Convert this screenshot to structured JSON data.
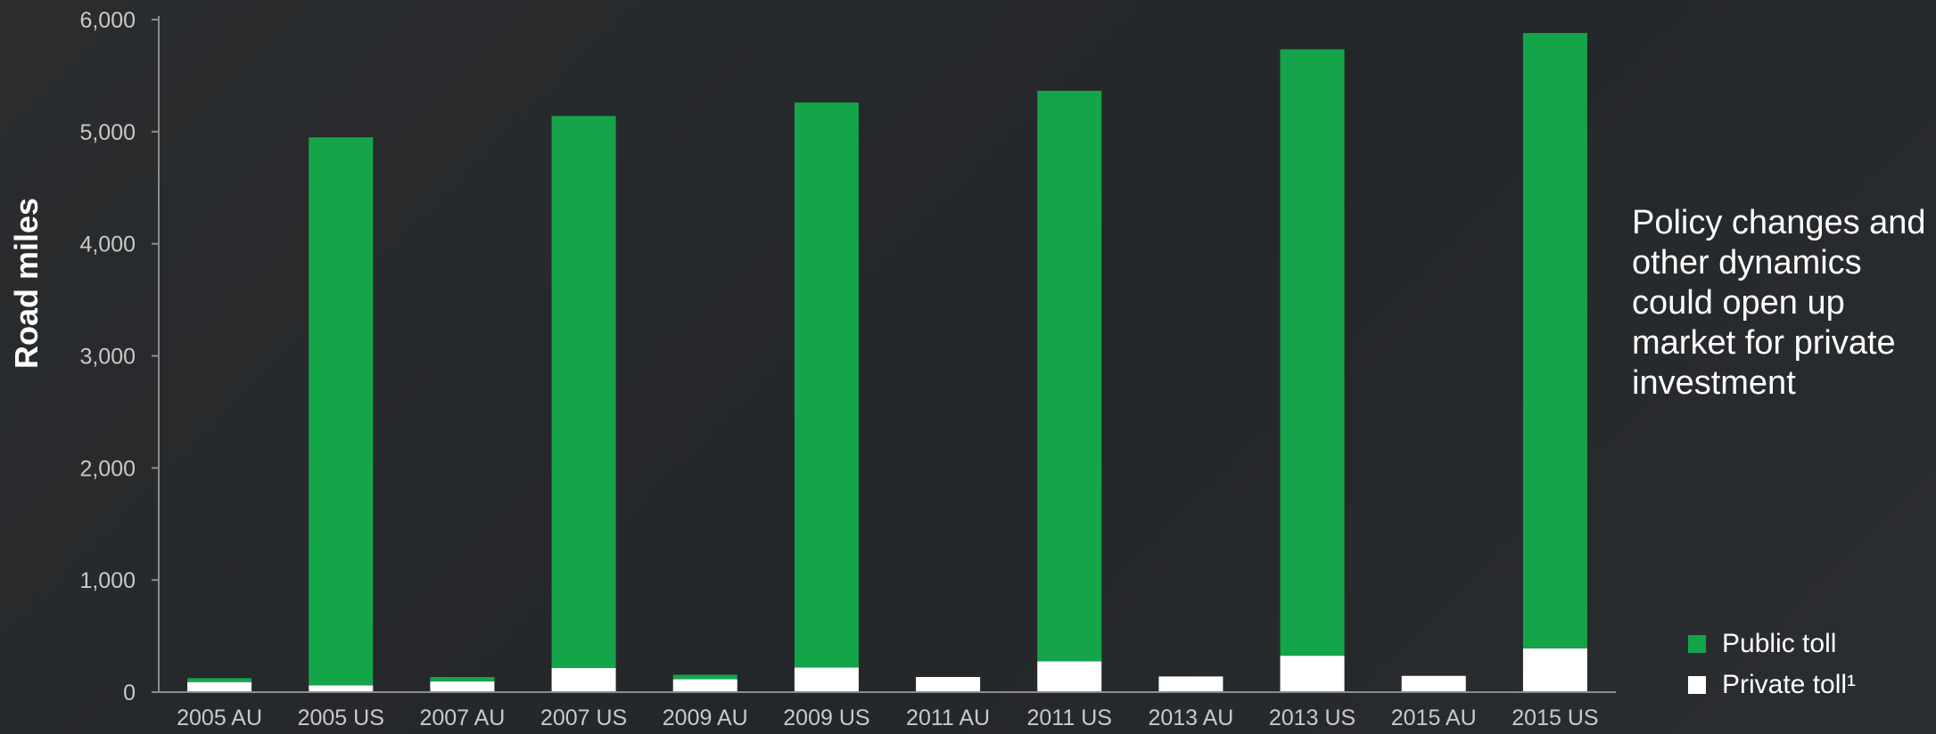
{
  "annotation": "Policy changes and other dynamics could open up market for private investment",
  "chart_data": {
    "type": "bar",
    "stacked": true,
    "ylabel": "Road miles",
    "ylim": [
      0,
      6000
    ],
    "yticks": [
      0,
      1000,
      2000,
      3000,
      4000,
      5000,
      6000
    ],
    "ytick_labels": [
      "0",
      "1,000",
      "2,000",
      "3,000",
      "4,000",
      "5,000",
      "6,000"
    ],
    "categories": [
      "2005 AU",
      "2005 US",
      "2007 AU",
      "2007 US",
      "2009 AU",
      "2009 US",
      "2011 AU",
      "2011 US",
      "2013 AU",
      "2013 US",
      "2015 AU",
      "2015 US"
    ],
    "series": [
      {
        "name": "Private toll¹",
        "color": "#ffffff",
        "values": [
          90,
          60,
          95,
          215,
          115,
          220,
          135,
          275,
          140,
          325,
          145,
          390
        ]
      },
      {
        "name": "Public toll",
        "color": "#14a44a",
        "values": [
          35,
          4890,
          40,
          4925,
          40,
          5040,
          0,
          5090,
          0,
          5410,
          0,
          5490
        ]
      }
    ],
    "legend": [
      {
        "label": "Public toll",
        "color": "#14a44a"
      },
      {
        "label": "Private toll¹",
        "color": "#ffffff"
      }
    ],
    "legend_position": "bottom-right",
    "grid": false
  }
}
